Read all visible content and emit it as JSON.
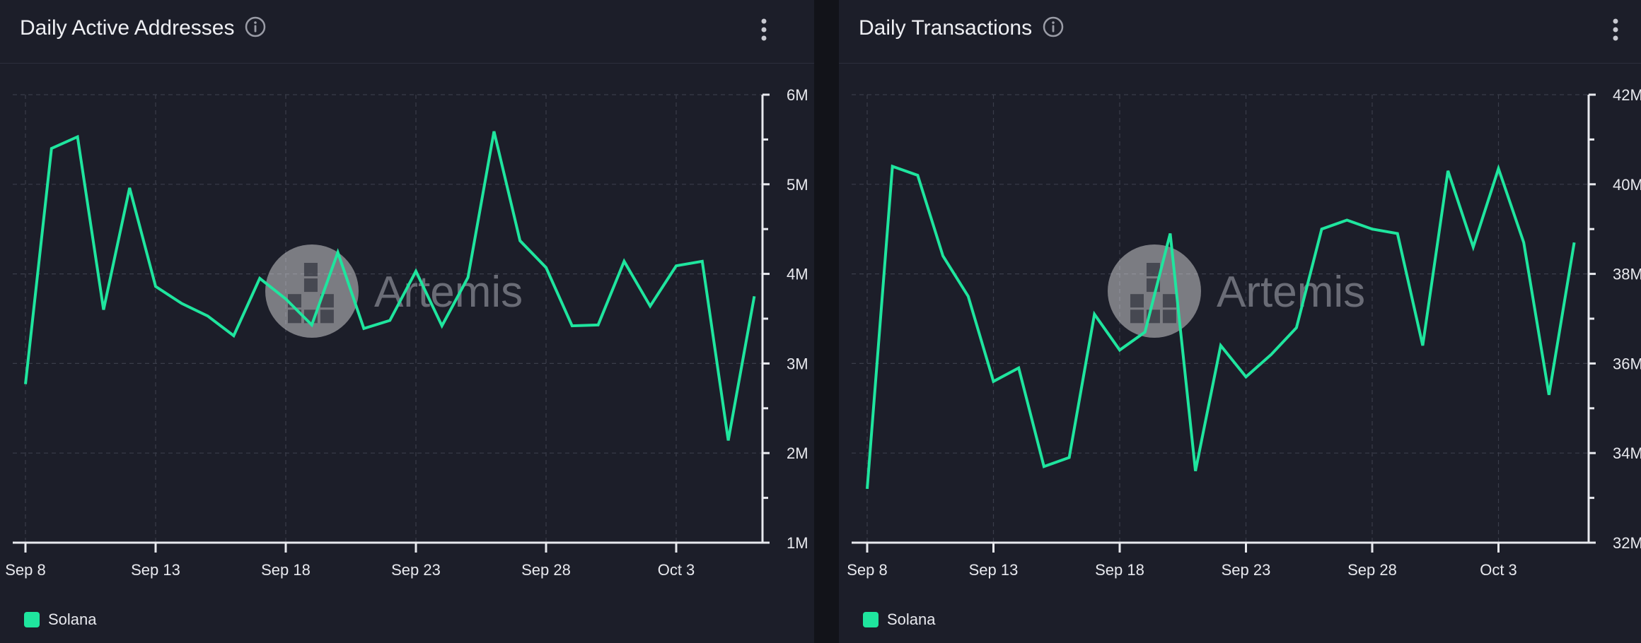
{
  "colors": {
    "background": "#1c1e29",
    "grid": "#3a3d4a",
    "line": "#1fe59e",
    "text": "#e8e9ee"
  },
  "watermark": "Artemis",
  "chart_data": [
    {
      "type": "line",
      "title": "Daily Active Addresses",
      "x_tick_labels": [
        "Sep 8",
        "Sep 13",
        "Sep 18",
        "Sep 23",
        "Sep 28",
        "Oct 3"
      ],
      "y_tick_labels": [
        "6M",
        "5M",
        "4M",
        "3M",
        "2M",
        "1M"
      ],
      "ylim": [
        1000000,
        6000000
      ],
      "y_axis_position": "right",
      "grid": true,
      "legend_position": "bottom-left",
      "x": [
        "Sep 8",
        "Sep 9",
        "Sep 10",
        "Sep 11",
        "Sep 12",
        "Sep 13",
        "Sep 14",
        "Sep 15",
        "Sep 16",
        "Sep 17",
        "Sep 18",
        "Sep 19",
        "Sep 20",
        "Sep 21",
        "Sep 22",
        "Sep 23",
        "Sep 24",
        "Sep 25",
        "Sep 26",
        "Sep 27",
        "Sep 28",
        "Sep 29",
        "Sep 30",
        "Oct 1",
        "Oct 2",
        "Oct 3",
        "Oct 4",
        "Oct 5",
        "Oct 6"
      ],
      "series": [
        {
          "name": "Solana",
          "values": [
            2770000,
            5400000,
            5530000,
            3600000,
            4960000,
            3860000,
            3670000,
            3530000,
            3310000,
            3950000,
            3720000,
            3430000,
            4240000,
            3390000,
            3480000,
            4030000,
            3420000,
            3960000,
            5590000,
            4370000,
            4070000,
            3420000,
            3430000,
            4140000,
            3640000,
            4090000,
            4140000,
            2140000,
            3750000
          ]
        }
      ]
    },
    {
      "type": "line",
      "title": "Daily Transactions",
      "x_tick_labels": [
        "Sep 8",
        "Sep 13",
        "Sep 18",
        "Sep 23",
        "Sep 28",
        "Oct 3"
      ],
      "y_tick_labels": [
        "42M",
        "40M",
        "38M",
        "36M",
        "34M",
        "32M"
      ],
      "ylim": [
        32000000,
        42000000
      ],
      "y_axis_position": "right",
      "grid": true,
      "legend_position": "bottom-left",
      "x": [
        "Sep 8",
        "Sep 9",
        "Sep 10",
        "Sep 11",
        "Sep 12",
        "Sep 13",
        "Sep 14",
        "Sep 15",
        "Sep 16",
        "Sep 17",
        "Sep 18",
        "Sep 19",
        "Sep 20",
        "Sep 21",
        "Sep 22",
        "Sep 23",
        "Sep 24",
        "Sep 25",
        "Sep 26",
        "Sep 27",
        "Sep 28",
        "Sep 29",
        "Sep 30",
        "Oct 1",
        "Oct 2",
        "Oct 3",
        "Oct 4",
        "Oct 5",
        "Oct 6"
      ],
      "series": [
        {
          "name": "Solana",
          "values": [
            33200000,
            40400000,
            40200000,
            38400000,
            37500000,
            35600000,
            35900000,
            33700000,
            33900000,
            37100000,
            36300000,
            36700000,
            38900000,
            33600000,
            36400000,
            35700000,
            36200000,
            36800000,
            39000000,
            39200000,
            39000000,
            38900000,
            36400000,
            40300000,
            38600000,
            40350000,
            38700000,
            35300000,
            38700000
          ]
        }
      ]
    }
  ]
}
